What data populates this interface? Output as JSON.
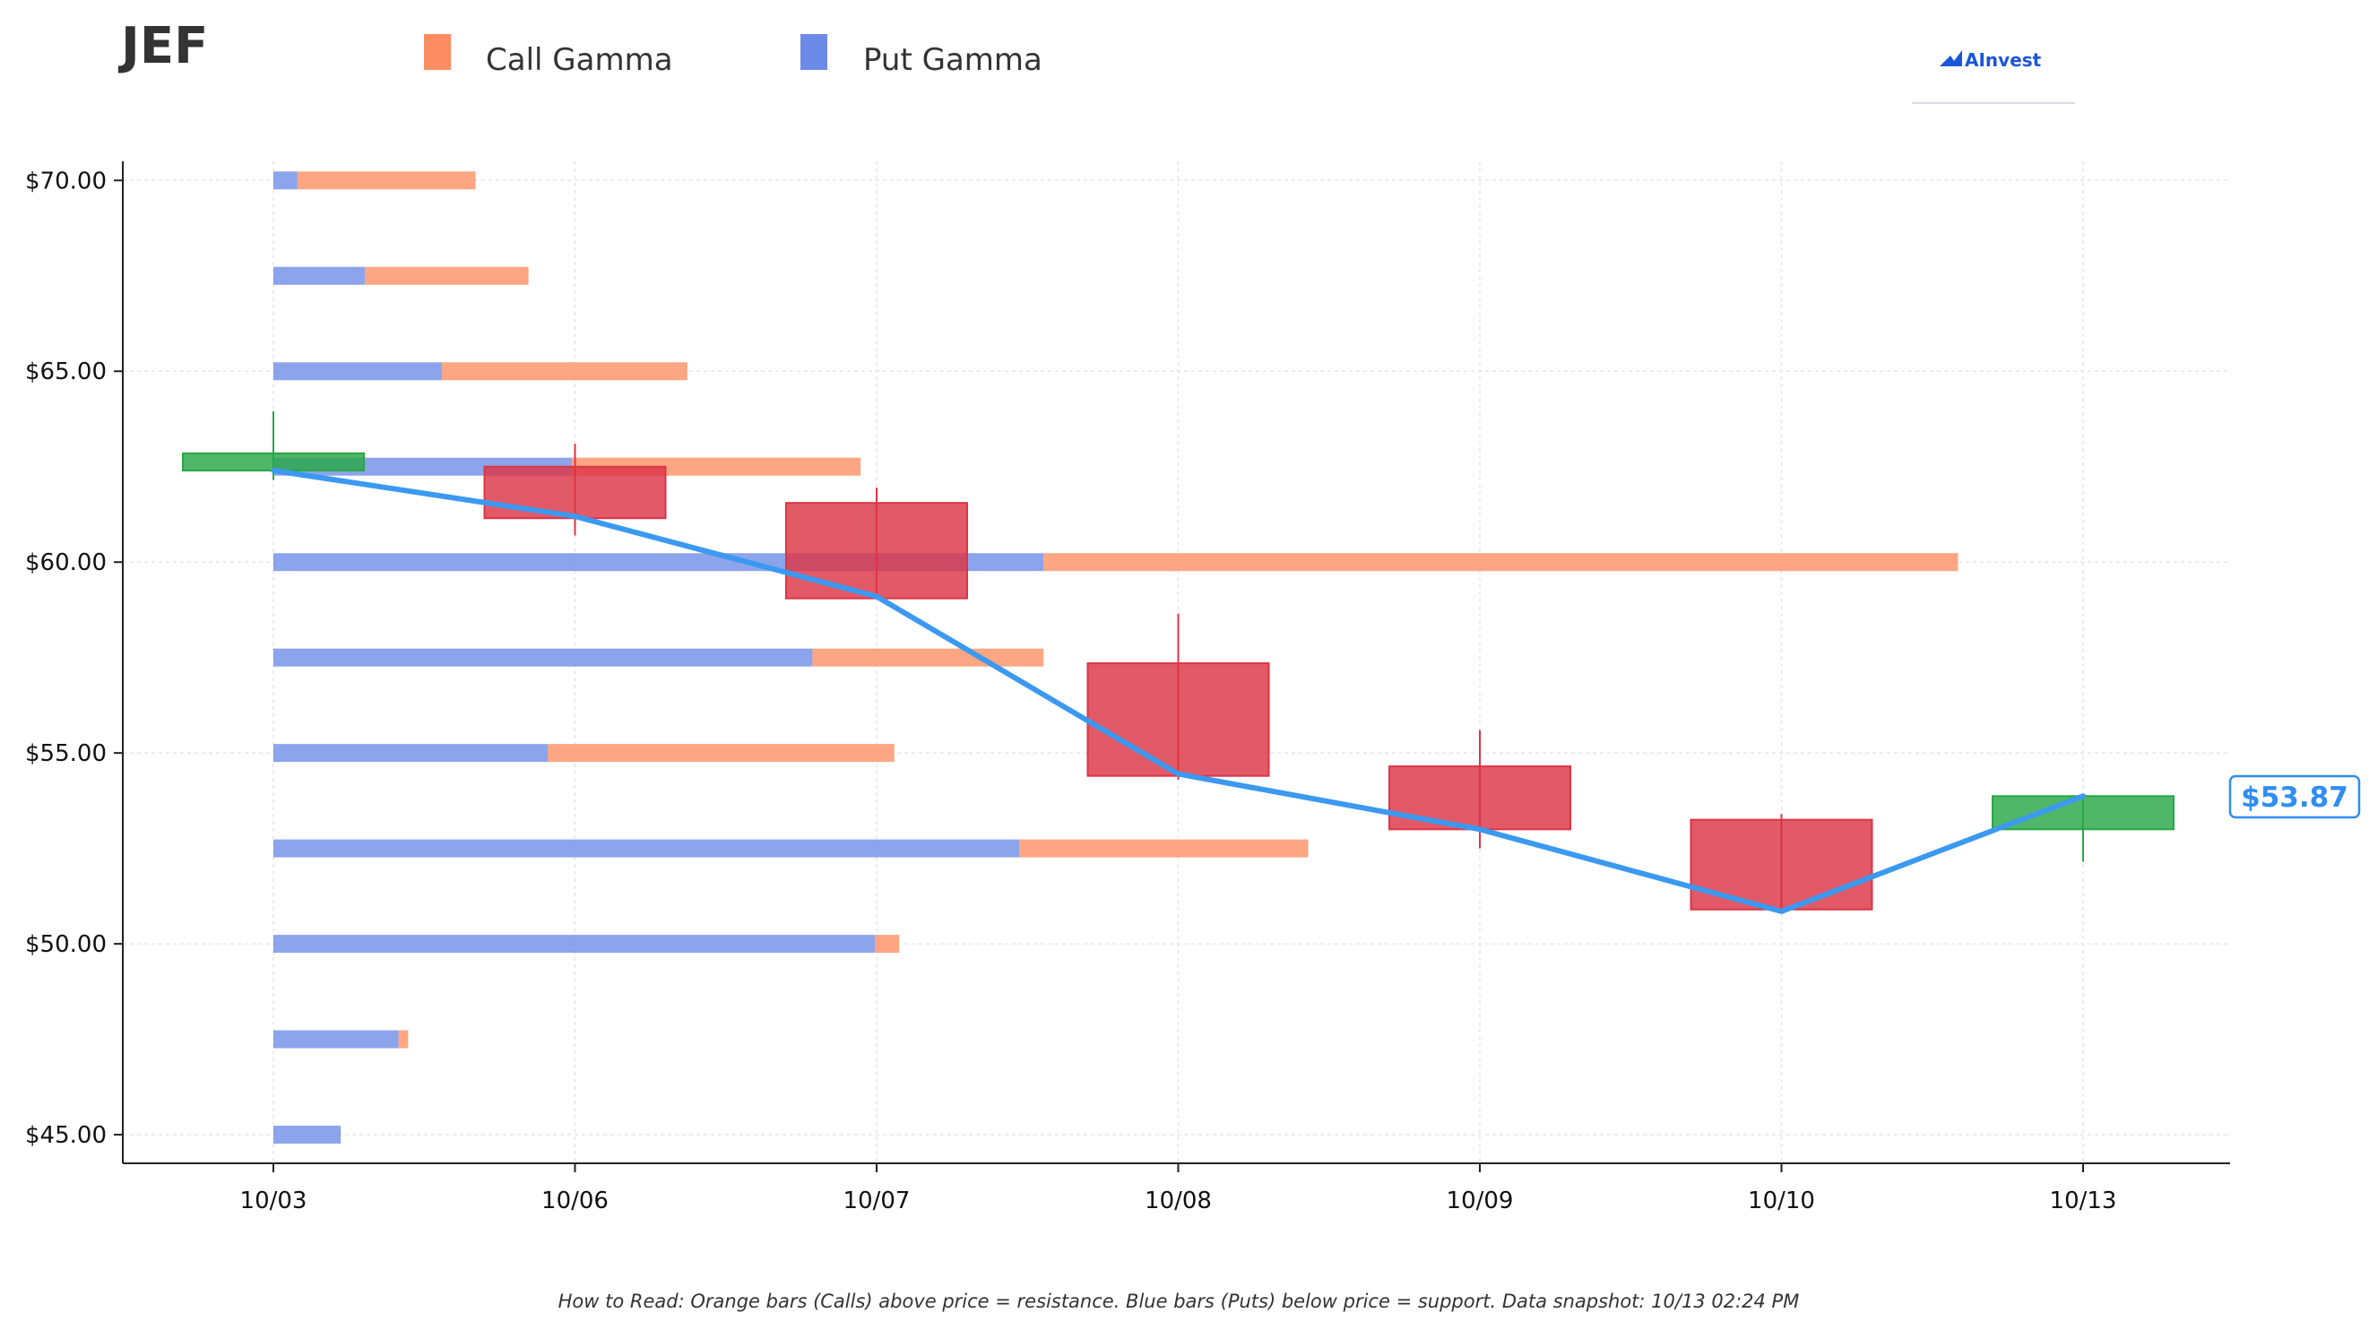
{
  "header": {
    "ticker": "JEF",
    "logo_text": "AInvest"
  },
  "footnote": "How to Read: Orange bars (Calls) above price = resistance. Blue bars (Puts) below price = support. Data snapshot: 10/13 02:24 PM",
  "colors": {
    "call": "#fc8d62",
    "put": "#6b8be6",
    "down_candle": "#dc3545",
    "up_candle": "#28a745",
    "price_line": "#3b99f0",
    "axis": "#222222",
    "grid": "#e6e6e6"
  },
  "chart_data": {
    "type": "candlestick_with_gamma_bars",
    "legend": [
      {
        "name": "Call Gamma",
        "color": "#fc8d62"
      },
      {
        "name": "Put Gamma",
        "color": "#6b8be6"
      }
    ],
    "legend_position": "top",
    "grid": true,
    "ylim": [
      44.25,
      70.5
    ],
    "y_ticks": [
      45,
      50,
      55,
      60,
      65,
      70
    ],
    "y_tick_labels": [
      "$45.00",
      "$50.00",
      "$55.00",
      "$60.00",
      "$65.00",
      "$70.00"
    ],
    "x_categories": [
      "10/03",
      "10/06",
      "10/07",
      "10/08",
      "10/09",
      "10/10",
      "10/13"
    ],
    "candles": [
      {
        "date": "10/03",
        "open": 62.4,
        "high": 63.95,
        "low": 62.15,
        "close": 62.85
      },
      {
        "date": "10/06",
        "open": 62.5,
        "high": 63.1,
        "low": 60.7,
        "close": 61.15
      },
      {
        "date": "10/07",
        "open": 61.55,
        "high": 61.95,
        "low": 59.05,
        "close": 59.05
      },
      {
        "date": "10/08",
        "open": 57.35,
        "high": 58.65,
        "low": 54.3,
        "close": 54.4
      },
      {
        "date": "10/09",
        "open": 54.65,
        "high": 55.6,
        "low": 52.5,
        "close": 53.0
      },
      {
        "date": "10/10",
        "open": 53.25,
        "high": 53.4,
        "low": 50.85,
        "close": 50.9
      },
      {
        "date": "10/13",
        "open": 53.0,
        "high": 53.87,
        "low": 52.15,
        "close": 53.87
      }
    ],
    "price_line": [
      {
        "date": "10/03",
        "value": 62.4
      },
      {
        "date": "10/06",
        "value": 61.2
      },
      {
        "date": "10/07",
        "value": 59.1
      },
      {
        "date": "10/08",
        "value": 54.45
      },
      {
        "date": "10/09",
        "value": 53.0
      },
      {
        "date": "10/10",
        "value": 50.85
      },
      {
        "date": "10/13",
        "value": 53.87
      }
    ],
    "current_price_label": "$53.87",
    "current_price": 53.87,
    "gamma_bars": [
      {
        "strike": 70.0,
        "put": 0.05,
        "call": 0.37
      },
      {
        "strike": 67.5,
        "put": 0.19,
        "call": 0.34
      },
      {
        "strike": 65.0,
        "put": 0.35,
        "call": 0.51
      },
      {
        "strike": 62.5,
        "put": 0.62,
        "call": 0.6
      },
      {
        "strike": 60.0,
        "put": 1.6,
        "call": 1.9
      },
      {
        "strike": 57.5,
        "put": 1.12,
        "call": 0.48
      },
      {
        "strike": 55.0,
        "put": 0.57,
        "call": 0.72
      },
      {
        "strike": 52.5,
        "put": 1.55,
        "call": 0.6
      },
      {
        "strike": 50.0,
        "put": 1.25,
        "call": 0.05
      },
      {
        "strike": 47.5,
        "put": 0.26,
        "call": 0.02
      },
      {
        "strike": 45.0,
        "put": 0.14,
        "call": 0.0
      }
    ]
  }
}
